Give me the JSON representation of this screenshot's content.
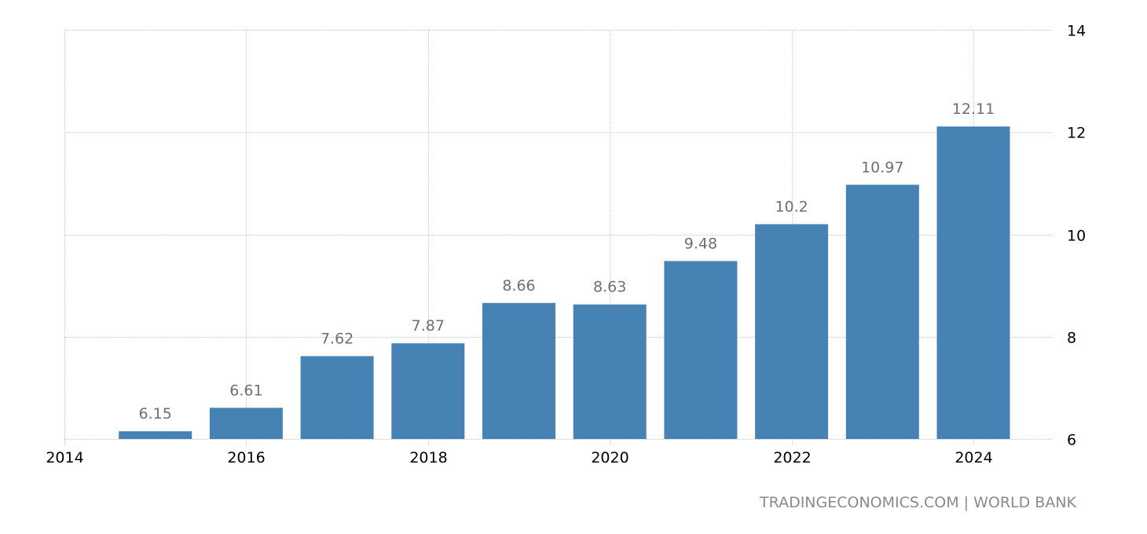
{
  "chart_data": {
    "type": "bar",
    "title": "",
    "xlabel": "",
    "ylabel": "",
    "categories": [
      "2015",
      "2016",
      "2017",
      "2018",
      "2019",
      "2020",
      "2021",
      "2022",
      "2023",
      "2024"
    ],
    "values": [
      6.15,
      6.61,
      7.62,
      7.87,
      8.66,
      8.63,
      9.48,
      10.2,
      10.97,
      12.11
    ],
    "value_labels": [
      "6.15",
      "6.61",
      "7.62",
      "7.87",
      "8.66",
      "8.63",
      "9.48",
      "10.2",
      "10.97",
      "12.11"
    ],
    "x_ticks": [
      "2014",
      "2016",
      "2018",
      "2020",
      "2022",
      "2024"
    ],
    "x_range": [
      2014,
      2024.9
    ],
    "y_ticks": [
      "6",
      "8",
      "10",
      "12",
      "14"
    ],
    "ylim": [
      6,
      14
    ],
    "y_axis_position": "right",
    "grid": true,
    "legend": "none",
    "bar_color": "#4682b4"
  },
  "source": "TRADINGECONOMICS.COM | WORLD BANK"
}
